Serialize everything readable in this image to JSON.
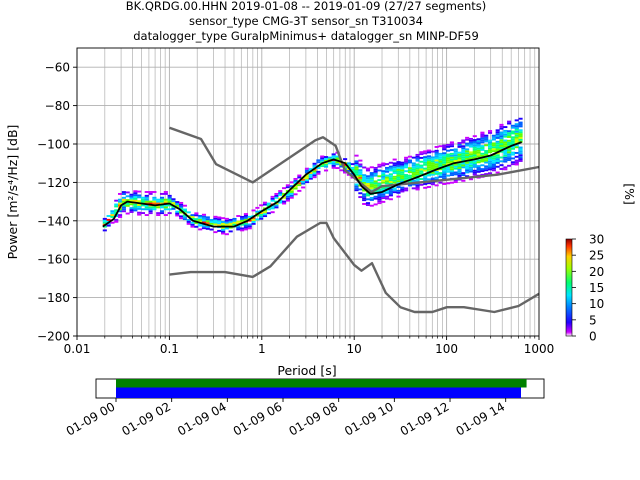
{
  "chart_data": [
    {
      "type": "heatmap",
      "title_lines": [
        "BK.QRDG.00.HHN   2019-01-08 -- 2019-01-09  (27/27 segments)",
        "sensor_type CMG-3T sensor_sn T310034",
        "datalogger_type GuralpMinimus+ datalogger_sn MINP-DF59"
      ],
      "xlabel": "Period [s]",
      "ylabel": "Power [m²/s⁴/Hz] [dB]",
      "xscale": "log",
      "xlim": [
        0.01,
        1000
      ],
      "ylim": [
        -200,
        -50
      ],
      "xticks": [
        {
          "v": 0.01,
          "label": "0.01"
        },
        {
          "v": 0.1,
          "label": "0.1"
        },
        {
          "v": 1,
          "label": "1"
        },
        {
          "v": 10,
          "label": "10"
        },
        {
          "v": 100,
          "label": "100"
        },
        {
          "v": 1000,
          "label": "1000"
        }
      ],
      "yticks": [
        {
          "v": -60,
          "label": "−60"
        },
        {
          "v": -80,
          "label": "−80"
        },
        {
          "v": -100,
          "label": "−100"
        },
        {
          "v": -120,
          "label": "−120"
        },
        {
          "v": -140,
          "label": "−140"
        },
        {
          "v": -160,
          "label": "−160"
        },
        {
          "v": -180,
          "label": "−180"
        },
        {
          "v": -200,
          "label": "−200"
        }
      ],
      "grid": true,
      "colorbar": {
        "label": "[%]",
        "range": [
          0,
          30
        ],
        "ticks": [
          {
            "v": 0,
            "label": "0"
          },
          {
            "v": 5,
            "label": "5"
          },
          {
            "v": 10,
            "label": "10"
          },
          {
            "v": 15,
            "label": "15"
          },
          {
            "v": 20,
            "label": "20"
          },
          {
            "v": 25,
            "label": "25"
          },
          {
            "v": 30,
            "label": "30"
          }
        ]
      },
      "noise_model_high": [
        [
          0.1,
          -91.5
        ],
        [
          0.22,
          -97.4
        ],
        [
          0.32,
          -110.5
        ],
        [
          0.8,
          -120
        ],
        [
          3.8,
          -98
        ],
        [
          4.6,
          -96.5
        ],
        [
          6.3,
          -101
        ],
        [
          7.9,
          -113.5
        ],
        [
          15.4,
          -125
        ],
        [
          20,
          -122
        ],
        [
          354.8,
          -116
        ],
        [
          1000,
          -112
        ]
      ],
      "noise_model_low": [
        [
          0.1,
          -168
        ],
        [
          0.17,
          -166.7
        ],
        [
          0.4,
          -166.7
        ],
        [
          0.8,
          -169.2
        ],
        [
          1.24,
          -163.7
        ],
        [
          2.4,
          -148.3
        ],
        [
          4.3,
          -141.1
        ],
        [
          5,
          -141.1
        ],
        [
          6,
          -149
        ],
        [
          10,
          -163
        ],
        [
          12,
          -166
        ],
        [
          15.6,
          -162.1
        ],
        [
          21.9,
          -177.5
        ],
        [
          31.6,
          -185
        ],
        [
          45,
          -187.5
        ],
        [
          70,
          -187.5
        ],
        [
          101,
          -185
        ],
        [
          154,
          -185
        ],
        [
          328,
          -187.5
        ],
        [
          600,
          -184.4
        ],
        [
          1000,
          -178
        ]
      ],
      "mean_curve": [
        [
          0.019,
          -143
        ],
        [
          0.025,
          -139
        ],
        [
          0.03,
          -132
        ],
        [
          0.035,
          -130
        ],
        [
          0.05,
          -131
        ],
        [
          0.07,
          -132
        ],
        [
          0.1,
          -131
        ],
        [
          0.13,
          -134
        ],
        [
          0.18,
          -140
        ],
        [
          0.3,
          -143
        ],
        [
          0.5,
          -143
        ],
        [
          0.7,
          -140
        ],
        [
          1,
          -135
        ],
        [
          1.5,
          -130
        ],
        [
          2,
          -124
        ],
        [
          3,
          -116
        ],
        [
          4.5,
          -110
        ],
        [
          6,
          -108
        ],
        [
          8,
          -110
        ],
        [
          10,
          -116
        ],
        [
          12,
          -122
        ],
        [
          15,
          -126
        ],
        [
          20,
          -125
        ],
        [
          30,
          -121
        ],
        [
          50,
          -117
        ],
        [
          80,
          -113
        ],
        [
          120,
          -110
        ],
        [
          200,
          -108
        ],
        [
          300,
          -106
        ],
        [
          500,
          -101
        ],
        [
          650,
          -99
        ]
      ],
      "psd_density_center": [
        [
          0.019,
          -142
        ],
        [
          0.03,
          -130
        ],
        [
          0.05,
          -131
        ],
        [
          0.1,
          -131
        ],
        [
          0.18,
          -140
        ],
        [
          0.4,
          -143
        ],
        [
          0.7,
          -140
        ],
        [
          1,
          -135
        ],
        [
          2,
          -124
        ],
        [
          4,
          -111
        ],
        [
          6,
          -108
        ],
        [
          9,
          -113
        ],
        [
          13,
          -123
        ],
        [
          20,
          -120
        ],
        [
          40,
          -115
        ],
        [
          80,
          -111
        ],
        [
          150,
          -108
        ],
        [
          300,
          -104
        ],
        [
          600,
          -97
        ]
      ]
    },
    {
      "type": "timeline",
      "xticks": [
        "01-09 00",
        "01-09 02",
        "01-09 04",
        "01-09 06",
        "01-09 08",
        "01-09 10",
        "01-09 12",
        "01-09 14"
      ],
      "data_coverage_hours": [
        0,
        14.75
      ],
      "gap_coverage_hours": [
        0,
        14.55
      ],
      "coverage_colors": {
        "data": "#008000",
        "psd": "#0000ff"
      }
    }
  ]
}
